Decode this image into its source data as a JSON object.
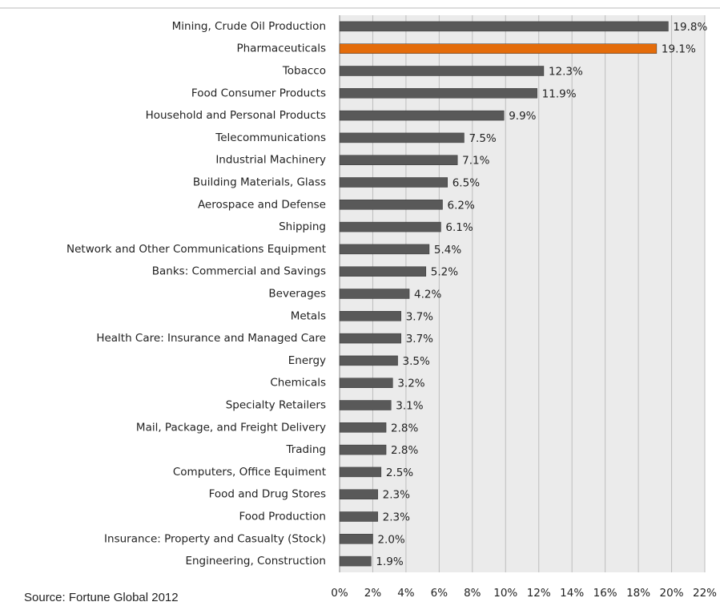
{
  "chart_data": {
    "type": "bar",
    "orientation": "horizontal",
    "source": "Source: Fortune Global 2012",
    "categories": [
      "Mining, Crude Oil Production",
      "Pharmaceuticals",
      "Tobacco",
      "Food Consumer Products",
      "Household and Personal Products",
      "Telecommunications",
      "Industrial Machinery",
      "Building Materials, Glass",
      "Aerospace and Defense",
      "Shipping",
      "Network and Other Communications Equipment",
      "Banks: Commercial and Savings",
      "Beverages",
      "Metals",
      "Health Care: Insurance and Managed Care",
      "Energy",
      "Chemicals",
      "Specialty Retailers",
      "Mail, Package, and Freight Delivery",
      "Trading",
      "Computers, Office Equiment",
      "Food and Drug Stores",
      "Food Production",
      "Insurance: Property and Casualty (Stock)",
      "Engineering, Construction"
    ],
    "values": [
      19.8,
      19.1,
      12.3,
      11.9,
      9.9,
      7.5,
      7.1,
      6.5,
      6.2,
      6.1,
      5.4,
      5.2,
      4.2,
      3.7,
      3.7,
      3.5,
      3.2,
      3.1,
      2.8,
      2.8,
      2.5,
      2.3,
      2.3,
      2.0,
      1.9
    ],
    "value_labels": [
      "19.8%",
      "19.1%",
      "12.3%",
      "11.9%",
      "9.9%",
      "7.5%",
      "7.1%",
      "6.5%",
      "6.2%",
      "6.1%",
      "5.4%",
      "5.2%",
      "4.2%",
      "3.7%",
      "3.7%",
      "3.5%",
      "3.2%",
      "3.1%",
      "2.8%",
      "2.8%",
      "2.5%",
      "2.3%",
      "2.3%",
      "2.0%",
      "1.9%"
    ],
    "colors": [
      "#595959",
      "#e46c0a",
      "#595959",
      "#595959",
      "#595959",
      "#595959",
      "#595959",
      "#595959",
      "#595959",
      "#595959",
      "#595959",
      "#595959",
      "#595959",
      "#595959",
      "#595959",
      "#595959",
      "#595959",
      "#595959",
      "#595959",
      "#595959",
      "#595959",
      "#595959",
      "#595959",
      "#595959",
      "#595959"
    ],
    "xlim": [
      0,
      22
    ],
    "xticks": [
      {
        "value": 0,
        "label": "0%"
      },
      {
        "value": 2,
        "label": "2%"
      },
      {
        "value": 4,
        "label": "4%"
      },
      {
        "value": 6,
        "label": "6%"
      },
      {
        "value": 8,
        "label": "8%"
      },
      {
        "value": 10,
        "label": "10%"
      },
      {
        "value": 12,
        "label": "12%"
      },
      {
        "value": 14,
        "label": "14%"
      },
      {
        "value": 16,
        "label": "16%"
      },
      {
        "value": 18,
        "label": "18%"
      },
      {
        "value": 20,
        "label": "20%"
      },
      {
        "value": 22,
        "label": "22%"
      }
    ],
    "grid": true
  }
}
